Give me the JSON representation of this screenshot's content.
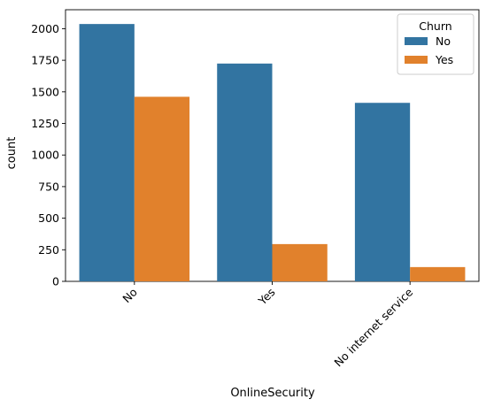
{
  "chart_data": {
    "type": "bar",
    "xlabel": "OnlineSecurity",
    "ylabel": "count",
    "categories": [
      "No",
      "Yes",
      "No internet service"
    ],
    "ylim": [
      0,
      2150
    ],
    "yticks": [
      0,
      250,
      500,
      750,
      1000,
      1250,
      1500,
      1750,
      2000
    ],
    "xtick_rotation": 45,
    "grid": false,
    "legend": {
      "title": "Churn",
      "placement": "top-right"
    },
    "series": [
      {
        "name": "No",
        "color": "#3274a1",
        "values": [
          2037,
          1724,
          1413
        ]
      },
      {
        "name": "Yes",
        "color": "#e1812c",
        "values": [
          1461,
          295,
          113
        ]
      }
    ]
  }
}
